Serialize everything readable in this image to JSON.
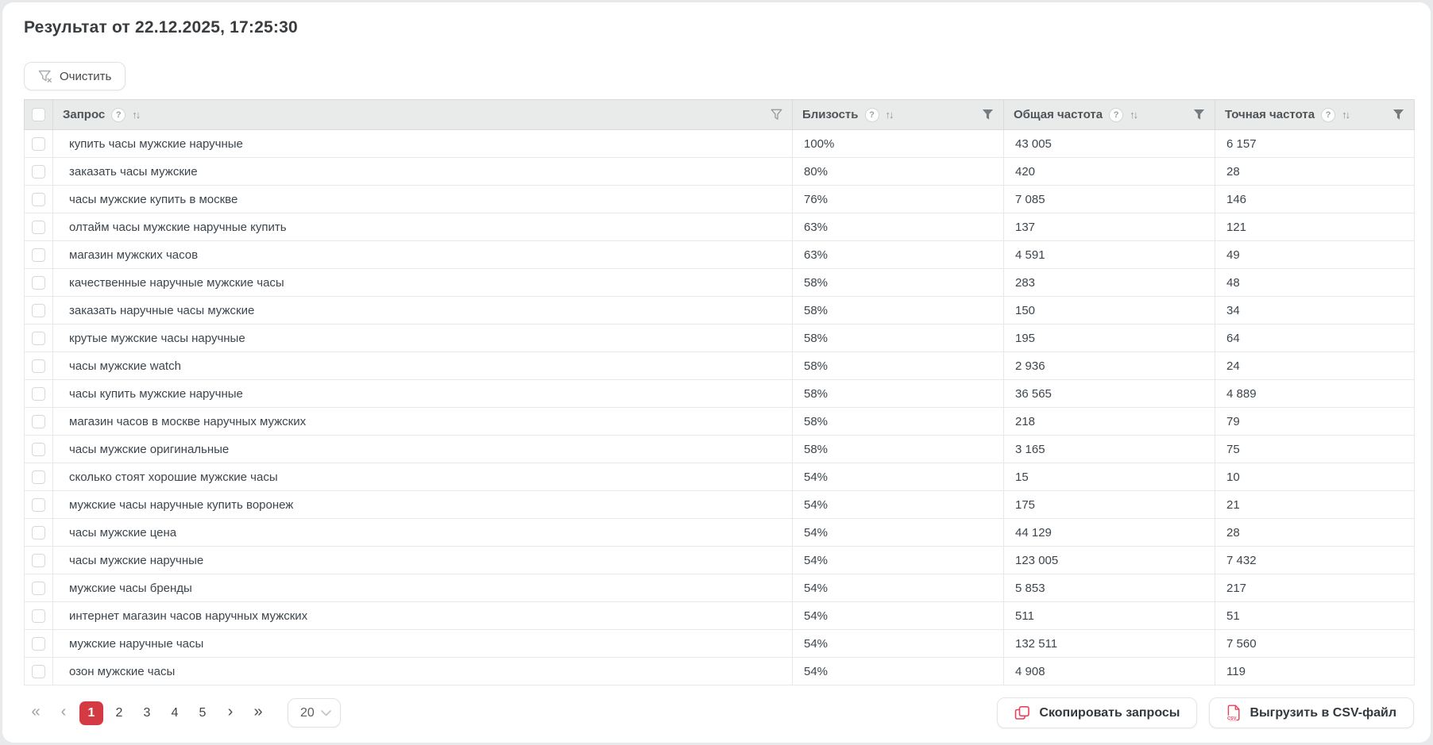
{
  "title": "Результат от 22.12.2025, 17:25:30",
  "toolbar": {
    "clear_label": "Очистить"
  },
  "icons": {
    "help_glyph": "?",
    "sort_glyph": "↑↓"
  },
  "colors": {
    "accent_red": "#d43a41",
    "icon_red": "#e8415a",
    "header_bg": "#e9eaea",
    "funnel_gray": "#767b7f"
  },
  "table": {
    "columns": [
      {
        "label": "Запрос",
        "filter_style": "outline"
      },
      {
        "label": "Близость",
        "filter_style": "filled"
      },
      {
        "label": "Общая частота",
        "filter_style": "filled"
      },
      {
        "label": "Точная частота",
        "filter_style": "filled"
      }
    ],
    "rows": [
      {
        "query": "купить часы мужские наручные",
        "proximity": "100%",
        "total": "43 005",
        "exact": "6 157"
      },
      {
        "query": "заказать часы мужские",
        "proximity": "80%",
        "total": "420",
        "exact": "28"
      },
      {
        "query": "часы мужские купить в москве",
        "proximity": "76%",
        "total": "7 085",
        "exact": "146"
      },
      {
        "query": "олтайм часы мужские наручные купить",
        "proximity": "63%",
        "total": "137",
        "exact": "121"
      },
      {
        "query": "магазин мужских часов",
        "proximity": "63%",
        "total": "4 591",
        "exact": "49"
      },
      {
        "query": "качественные наручные мужские часы",
        "proximity": "58%",
        "total": "283",
        "exact": "48"
      },
      {
        "query": "заказать наручные часы мужские",
        "proximity": "58%",
        "total": "150",
        "exact": "34"
      },
      {
        "query": "крутые мужские часы наручные",
        "proximity": "58%",
        "total": "195",
        "exact": "64"
      },
      {
        "query": "часы мужские watch",
        "proximity": "58%",
        "total": "2 936",
        "exact": "24"
      },
      {
        "query": "часы купить мужские наручные",
        "proximity": "58%",
        "total": "36 565",
        "exact": "4 889"
      },
      {
        "query": "магазин часов в москве наручных мужских",
        "proximity": "58%",
        "total": "218",
        "exact": "79"
      },
      {
        "query": "часы мужские оригинальные",
        "proximity": "58%",
        "total": "3 165",
        "exact": "75"
      },
      {
        "query": "сколько стоят хорошие мужские часы",
        "proximity": "54%",
        "total": "15",
        "exact": "10"
      },
      {
        "query": "мужские часы наручные купить воронеж",
        "proximity": "54%",
        "total": "175",
        "exact": "21"
      },
      {
        "query": "часы мужские цена",
        "proximity": "54%",
        "total": "44 129",
        "exact": "28"
      },
      {
        "query": "часы мужские наручные",
        "proximity": "54%",
        "total": "123 005",
        "exact": "7 432"
      },
      {
        "query": "мужские часы бренды",
        "proximity": "54%",
        "total": "5 853",
        "exact": "217"
      },
      {
        "query": "интернет магазин часов наручных мужских",
        "proximity": "54%",
        "total": "511",
        "exact": "51"
      },
      {
        "query": "мужские наручные часы",
        "proximity": "54%",
        "total": "132 511",
        "exact": "7 560"
      },
      {
        "query": "озон мужские часы",
        "proximity": "54%",
        "total": "4 908",
        "exact": "119"
      }
    ]
  },
  "pagination": {
    "first_glyph": "«",
    "prev_glyph": "‹",
    "next_glyph": "›",
    "last_glyph": "»",
    "pages": [
      "1",
      "2",
      "3",
      "4",
      "5"
    ],
    "active_page": "1",
    "page_size": "20"
  },
  "footer_buttons": {
    "copy_label": "Скопировать запросы",
    "export_label": "Выгрузить в CSV-файл"
  }
}
